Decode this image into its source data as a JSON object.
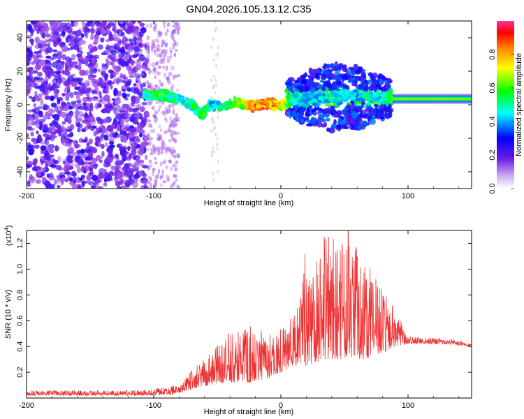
{
  "chart_data": [
    {
      "type": "heatmap",
      "title": "GN04.2026.105.13.12.C35",
      "xlabel": "Height of straight line (km)",
      "ylabel": "Frequency (Hz)",
      "xlim": [
        -200,
        150
      ],
      "ylim": [
        -50,
        50
      ],
      "xticks": [
        -200,
        -100,
        0,
        100
      ],
      "yticks": [
        -40,
        -20,
        0,
        20,
        40
      ],
      "colorbar": {
        "label": "Normalized spectral amplitude",
        "range": [
          0,
          1
        ],
        "ticks": [
          "0.0",
          "0.2",
          "0.4",
          "0.6",
          "0.8"
        ],
        "stops": [
          "#ffffff",
          "#8a2be2",
          "#0000ff",
          "#00ffff",
          "#00ff00",
          "#ffff00",
          "#ff8000",
          "#ff0000",
          "#ff3399"
        ]
      },
      "ridge": [
        {
          "x": -108,
          "y": 6,
          "v": 0.45
        },
        {
          "x": -100,
          "y": 6,
          "v": 0.6
        },
        {
          "x": -90,
          "y": 5.5,
          "v": 0.5
        },
        {
          "x": -80,
          "y": 3,
          "v": 0.45
        },
        {
          "x": -70,
          "y": 0,
          "v": 0.5
        },
        {
          "x": -62,
          "y": -6,
          "v": 0.55
        },
        {
          "x": -55,
          "y": 0,
          "v": 0.4
        },
        {
          "x": -45,
          "y": -2,
          "v": 0.5
        },
        {
          "x": -35,
          "y": 2,
          "v": 0.55
        },
        {
          "x": -28,
          "y": 0,
          "v": 0.7
        },
        {
          "x": -20,
          "y": -1,
          "v": 0.9
        },
        {
          "x": -10,
          "y": 1,
          "v": 0.85
        },
        {
          "x": -2,
          "y": -1,
          "v": 0.75
        },
        {
          "x": 10,
          "y": 3,
          "v": 0.45
        },
        {
          "x": 25,
          "y": 5,
          "v": 0.4
        },
        {
          "x": 40,
          "y": 4,
          "v": 0.45
        },
        {
          "x": 55,
          "y": 6,
          "v": 0.4
        },
        {
          "x": 70,
          "y": 5,
          "v": 0.45
        },
        {
          "x": 80,
          "y": 4,
          "v": 0.4
        },
        {
          "x": 90,
          "y": 3.5,
          "v": 0.6
        },
        {
          "x": 120,
          "y": 3.5,
          "v": 0.55
        },
        {
          "x": 150,
          "y": 3.5,
          "v": 0.5
        }
      ]
    },
    {
      "type": "line",
      "xlabel": "Height of straight line (km)",
      "ylabel": "SNR (10 * v/v)",
      "scale_label": "(x10",
      "scale_exp": "4",
      "scale_close": ")",
      "xlim": [
        -200,
        150
      ],
      "ylim": [
        0,
        1.3
      ],
      "xticks": [
        -200,
        -100,
        0,
        100
      ],
      "yticks": [
        0.2,
        0.4,
        0.6,
        0.8,
        1.0,
        1.2
      ],
      "series_color": "#ee3333",
      "envelope": [
        {
          "x": -200,
          "base": 0.02,
          "amp": 0.04
        },
        {
          "x": -120,
          "base": 0.02,
          "amp": 0.04
        },
        {
          "x": -100,
          "base": 0.02,
          "amp": 0.05
        },
        {
          "x": -85,
          "base": 0.03,
          "amp": 0.07
        },
        {
          "x": -75,
          "base": 0.05,
          "amp": 0.12
        },
        {
          "x": -65,
          "base": 0.08,
          "amp": 0.18
        },
        {
          "x": -55,
          "base": 0.1,
          "amp": 0.25
        },
        {
          "x": -40,
          "base": 0.12,
          "amp": 0.4
        },
        {
          "x": -25,
          "base": 0.12,
          "amp": 0.45
        },
        {
          "x": -10,
          "base": 0.15,
          "amp": 0.35
        },
        {
          "x": 0,
          "base": 0.2,
          "amp": 0.35
        },
        {
          "x": 10,
          "base": 0.25,
          "amp": 0.4
        },
        {
          "x": 20,
          "base": 0.25,
          "amp": 0.8
        },
        {
          "x": 35,
          "base": 0.3,
          "amp": 1.0
        },
        {
          "x": 50,
          "base": 0.3,
          "amp": 1.0
        },
        {
          "x": 65,
          "base": 0.3,
          "amp": 0.8
        },
        {
          "x": 80,
          "base": 0.35,
          "amp": 0.5
        },
        {
          "x": 90,
          "base": 0.4,
          "amp": 0.3
        },
        {
          "x": 100,
          "base": 0.42,
          "amp": 0.06
        },
        {
          "x": 130,
          "base": 0.42,
          "amp": 0.04
        },
        {
          "x": 150,
          "base": 0.4,
          "amp": 0.03
        }
      ],
      "peaks": [
        {
          "x": 19,
          "y": 1.12
        },
        {
          "x": 34,
          "y": 1.25
        },
        {
          "x": 53,
          "y": 1.3
        },
        {
          "x": 60,
          "y": 1.1
        }
      ]
    }
  ]
}
